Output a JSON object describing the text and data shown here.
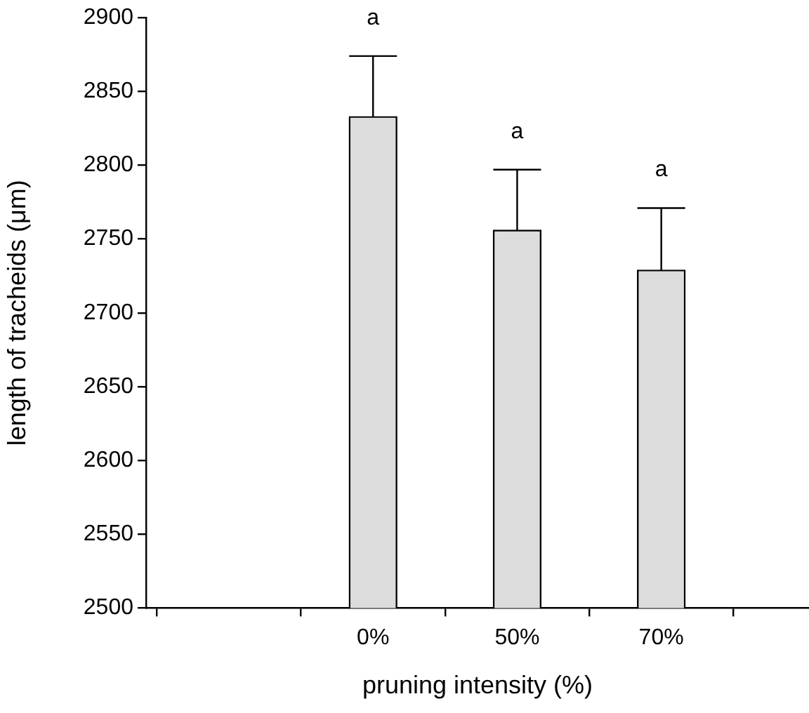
{
  "chart_data": {
    "type": "bar",
    "xlabel": "pruning intensity (%)",
    "ylabel": "length of tracheids (μm)",
    "categories": [
      null,
      "0%",
      "50%",
      "70%"
    ],
    "values": [
      null,
      2833,
      2756,
      2729
    ],
    "errors": [
      null,
      41,
      41,
      42
    ],
    "color": "#dcdcdc",
    "ylim": [
      2500,
      2900
    ],
    "yticks": [
      2500,
      2550,
      2600,
      2650,
      2700,
      2750,
      2800,
      2850,
      2900
    ],
    "grid": false,
    "legend": false,
    "annotations": [
      "a",
      "a",
      "a"
    ]
  }
}
